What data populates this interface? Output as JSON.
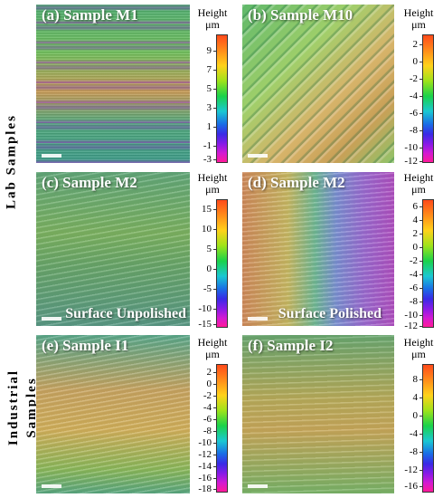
{
  "rows": {
    "lab_label": "Lab  Samples",
    "industrial_label_line1": "Industrial",
    "industrial_label_line2": "Samples"
  },
  "colorbar_header": {
    "line1": "Height",
    "line2": "μm"
  },
  "panels": [
    {
      "title": "(a) Sample M1",
      "caption": "",
      "ticks": [
        "9",
        "7",
        "5",
        "3",
        "1",
        "-1",
        "-3"
      ]
    },
    {
      "title": "(b) Sample M10",
      "caption": "",
      "ticks": [
        "2",
        "0",
        "-2",
        "-4",
        "-6",
        "-8",
        "-10",
        "-12"
      ]
    },
    {
      "title": "(c) Sample M2",
      "caption": "Surface Unpolished",
      "ticks": [
        "15",
        "10",
        "5",
        "0",
        "-5",
        "-10",
        "-15"
      ]
    },
    {
      "title": "(d) Sample M2",
      "caption": "Surface Polished",
      "ticks": [
        "6",
        "4",
        "2",
        "0",
        "-2",
        "-4",
        "-6",
        "-8",
        "-10",
        "-12"
      ]
    },
    {
      "title": "(e) Sample I1",
      "caption": "",
      "ticks": [
        "2",
        "0",
        "-2",
        "-4",
        "-6",
        "-8",
        "-10",
        "-12",
        "-14",
        "-16",
        "-18"
      ]
    },
    {
      "title": "(f) Sample I2",
      "caption": "",
      "ticks": [
        "8",
        "4",
        "0",
        "-4",
        "-8",
        "-12",
        "-16"
      ]
    }
  ]
}
